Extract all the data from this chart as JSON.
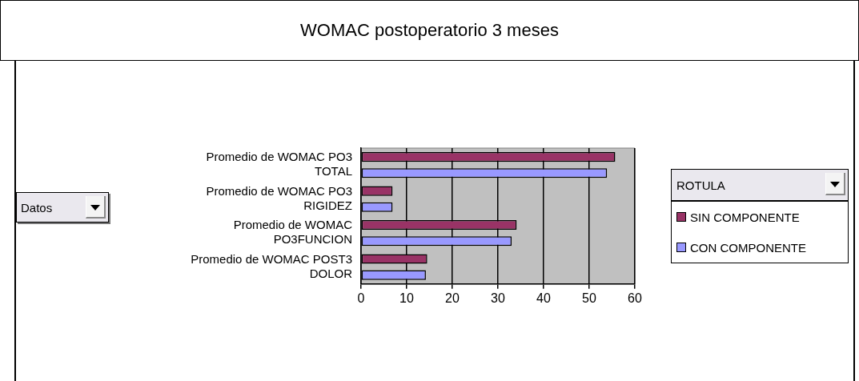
{
  "chart_data": {
    "type": "bar",
    "orientation": "horizontal",
    "title": "WOMAC postoperatorio 3 meses",
    "legend_title": "ROTULA",
    "annotations": [
      "Datos"
    ],
    "categories": [
      "Promedio de WOMAC PO3 TOTAL",
      "Promedio de WOMAC PO3 RIGIDEZ",
      "Promedio de WOMAC PO3FUNCION",
      "Promedio de WOMAC POST3 DOLOR"
    ],
    "series": [
      {
        "name": "SIN COMPONENTE",
        "color": "#993366",
        "values": [
          55.7,
          6.9,
          34.1,
          14.5
        ]
      },
      {
        "name": "CON COMPONENTE",
        "color": "#9999ff",
        "values": [
          53.9,
          6.9,
          33.0,
          14.2
        ]
      }
    ],
    "xlim": [
      0,
      60
    ],
    "xticks": [
      0,
      10,
      20,
      30,
      40,
      50,
      60
    ],
    "grid": "x",
    "legend": "right"
  }
}
